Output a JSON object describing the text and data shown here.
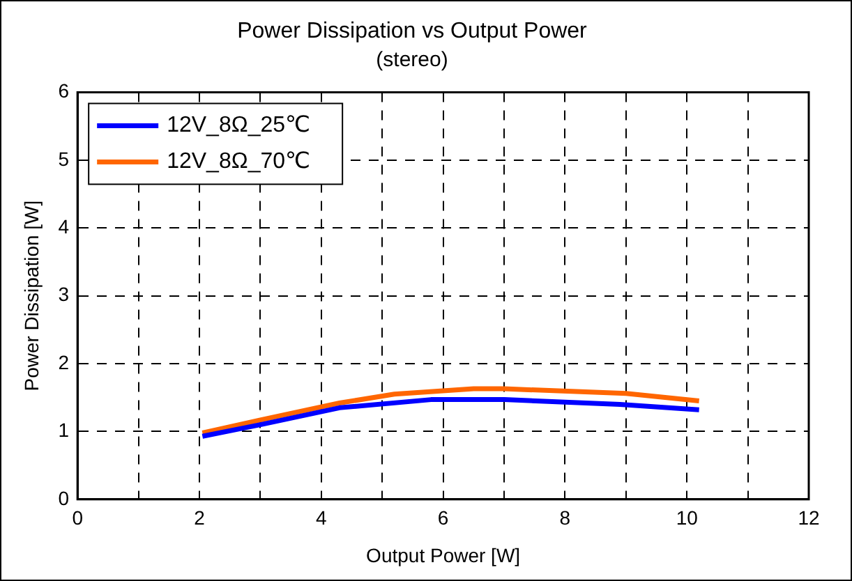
{
  "chart_data": {
    "type": "line",
    "title": "Power Dissipation vs Output Power",
    "subtitle": "(stereo)",
    "xlabel": "Output Power [W]",
    "ylabel": "Power Dissipation [W]",
    "xlim": [
      0,
      12
    ],
    "xticks": [
      0,
      {
        "value": 1,
        "label": null
      },
      2,
      {
        "value": 3,
        "label": null
      },
      4,
      {
        "value": 5,
        "label": null
      },
      6,
      {
        "value": 7,
        "label": null
      },
      8,
      {
        "value": 9,
        "label": null
      },
      10,
      {
        "value": 11,
        "label": null
      },
      12
    ],
    "ylim": [
      0,
      6
    ],
    "yticks": [
      0,
      1,
      2,
      3,
      4,
      5,
      6
    ],
    "grid": true,
    "legend": "top left",
    "marker": "none",
    "line_style": "solid",
    "series": [
      {
        "name": "12V_8Ω_25℃",
        "color": "#0000ff",
        "x": [
          2.05,
          3.0,
          4.3,
          5.8,
          7.0,
          8.9,
          10.2
        ],
        "values": [
          0.93,
          1.1,
          1.35,
          1.47,
          1.47,
          1.4,
          1.32
        ]
      },
      {
        "name": "12V_8Ω_70℃",
        "color": "#ff6600",
        "x": [
          2.05,
          3.0,
          4.3,
          5.2,
          6.5,
          7.0,
          9.0,
          10.2
        ],
        "values": [
          0.98,
          1.17,
          1.42,
          1.55,
          1.63,
          1.63,
          1.56,
          1.45
        ]
      }
    ]
  }
}
